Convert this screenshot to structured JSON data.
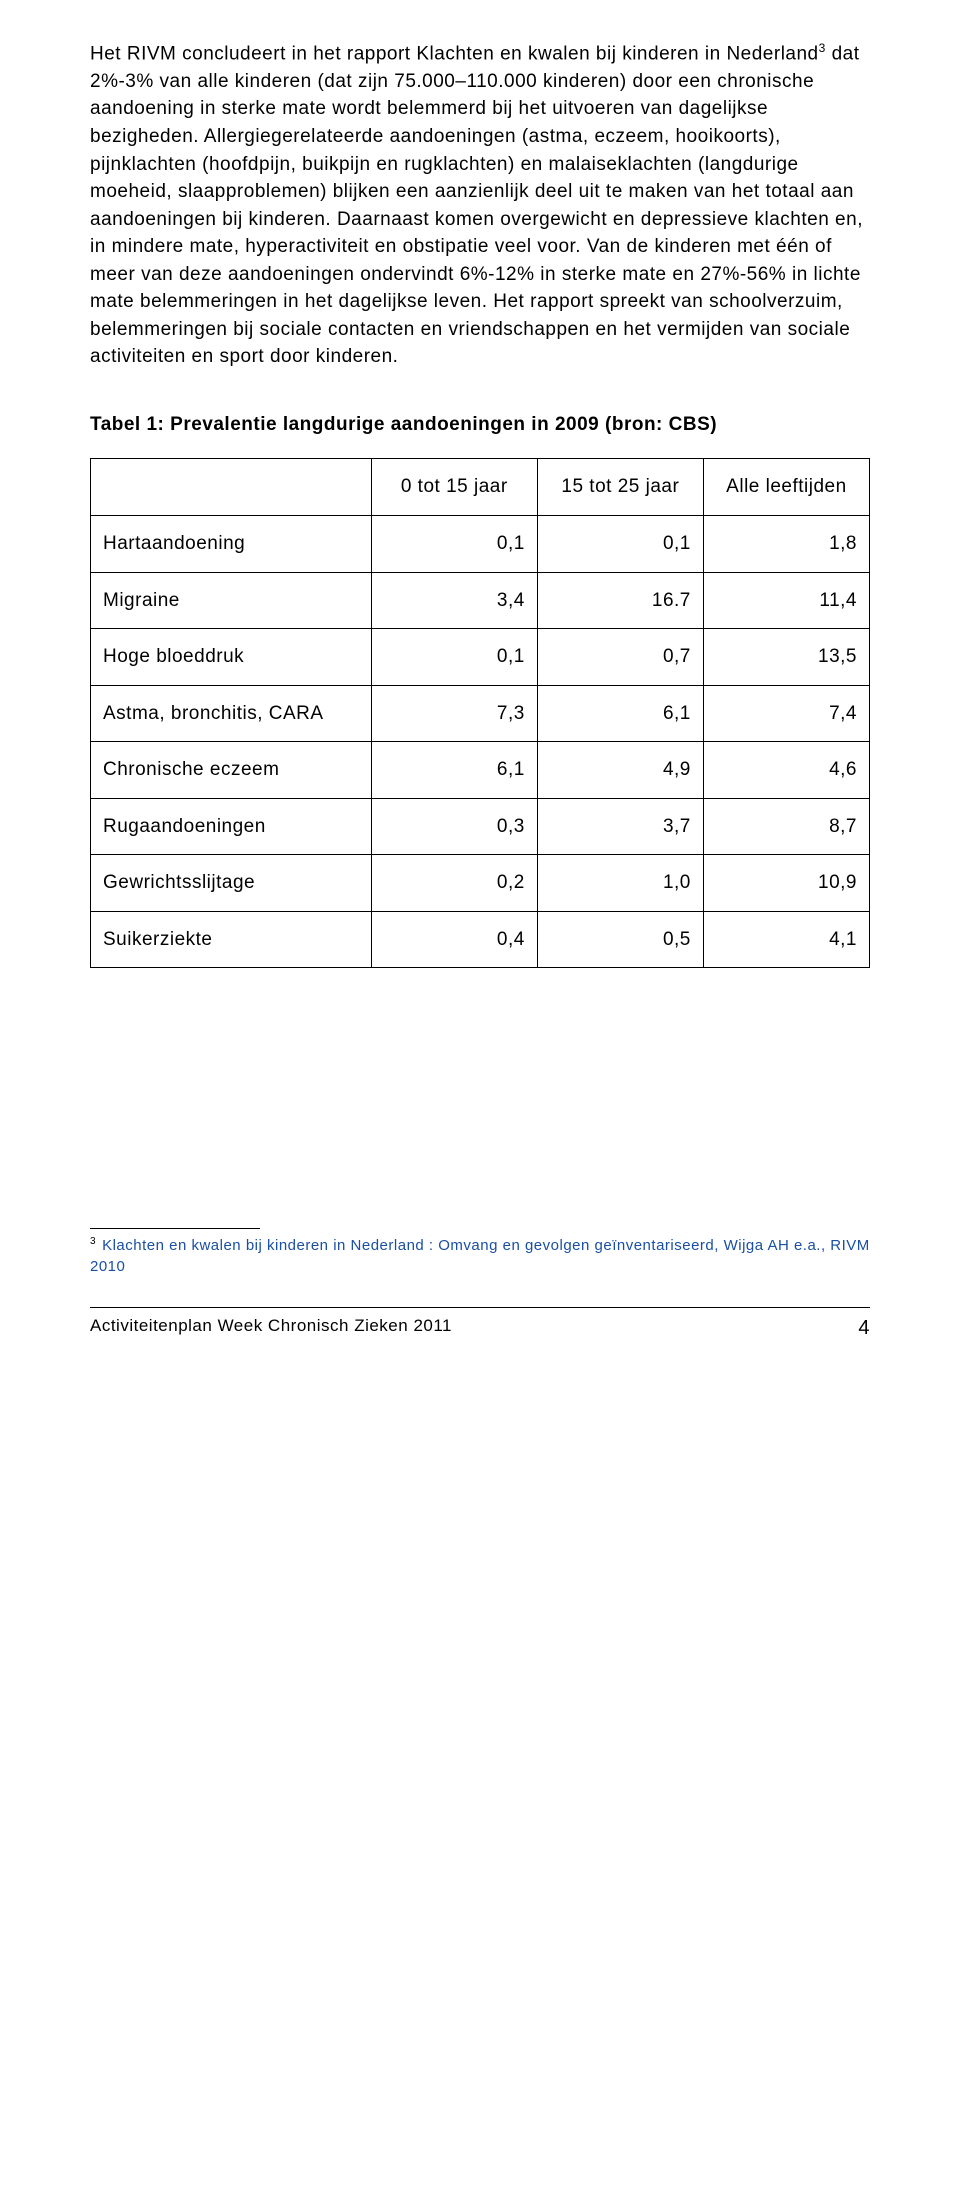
{
  "paragraph": {
    "part1": "Het RIVM concludeert in het rapport Klachten en kwalen bij kinderen in Nederland",
    "sup": "3",
    "part2": " dat 2%-3% van alle kinderen (dat zijn 75.000–110.000 kinderen) door een chronische aandoening in sterke mate wordt belemmerd bij het uitvoeren van dagelijkse bezigheden. Allergiegerelateerde aandoeningen (astma, eczeem, hooikoorts), pijnklachten (hoofdpijn, buikpijn en rugklachten) en malaiseklachten (langdurige moeheid, slaapproblemen) blijken een aanzienlijk deel uit te maken van het totaal aan aandoeningen bij kinderen. Daarnaast komen overgewicht en depressieve klachten en, in mindere mate, hyperactiviteit en obstipatie veel voor. Van de kinderen met één of meer van deze aandoeningen ondervindt 6%-12% in sterke mate en 27%-56% in lichte mate belemmeringen in het dagelijkse leven. Het rapport spreekt van schoolverzuim, belemmeringen bij sociale contacten en vriendschappen en het vermijden van sociale activiteiten en sport door kinderen."
  },
  "table": {
    "title": "Tabel 1: Prevalentie langdurige aandoeningen in 2009 (bron: CBS)",
    "headers": {
      "col1": "0 tot 15 jaar",
      "col2": "15 tot 25 jaar",
      "col3": "Alle leeftijden"
    },
    "rows": [
      {
        "label": "Hartaandoening",
        "c1": "0,1",
        "c2": "0,1",
        "c3": "1,8"
      },
      {
        "label": "Migraine",
        "c1": "3,4",
        "c2": "16.7",
        "c3": "11,4"
      },
      {
        "label": "Hoge bloeddruk",
        "c1": "0,1",
        "c2": "0,7",
        "c3": "13,5"
      },
      {
        "label": "Astma, bronchitis, CARA",
        "c1": "7,3",
        "c2": "6,1",
        "c3": "7,4"
      },
      {
        "label": "Chronische eczeem",
        "c1": "6,1",
        "c2": "4,9",
        "c3": "4,6"
      },
      {
        "label": "Rugaandoeningen",
        "c1": "0,3",
        "c2": "3,7",
        "c3": "8,7"
      },
      {
        "label": "Gewrichtsslijtage",
        "c1": "0,2",
        "c2": "1,0",
        "c3": "10,9"
      },
      {
        "label": "Suikerziekte",
        "c1": "0,4",
        "c2": "0,5",
        "c3": "4,1"
      }
    ]
  },
  "footnote": {
    "num": "3",
    "text": "Klachten en kwalen bij kinderen in Nederland : Omvang en gevolgen geïnventariseerd, Wijga AH e.a., RIVM 2010"
  },
  "footer": {
    "left": "Activiteitenplan  Week Chronisch Zieken 2011",
    "page": "4"
  }
}
